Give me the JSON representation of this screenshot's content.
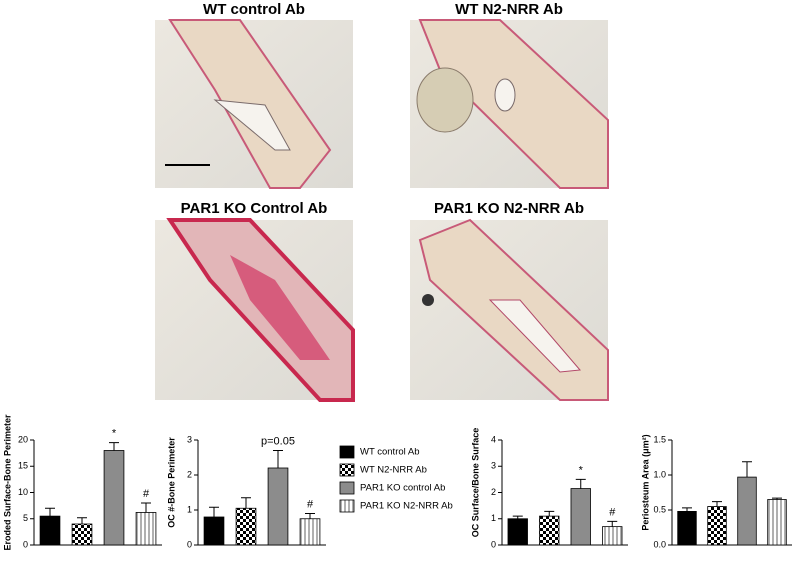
{
  "panels": [
    "WT control Ab",
    "WT N2-NRR Ab",
    "PAR1 KO Control Ab",
    "PAR1 KO N2-NRR Ab"
  ],
  "legend": {
    "entries": [
      "WT control Ab",
      "WT N2-NRR Ab",
      "PAR1 KO control Ab",
      "PAR1 KO N2-NRR Ab"
    ],
    "fills": [
      "#000000",
      "checker",
      "#8c8c8c",
      "stripes"
    ]
  },
  "chart_data": [
    {
      "type": "bar",
      "y_label": "Eroded Surface-Bone Perimeter",
      "values": [
        5.5,
        4,
        18,
        6.2
      ],
      "errors": [
        1.5,
        1.2,
        1.5,
        1.8
      ],
      "annotations": [
        null,
        null,
        "*",
        "#"
      ],
      "ylim": [
        0,
        20
      ],
      "yticks": [
        0,
        5,
        10,
        15,
        20
      ]
    },
    {
      "type": "bar",
      "y_label": "OC #-Bone Perimeter",
      "values": [
        0.8,
        1.05,
        2.2,
        0.75
      ],
      "errors": [
        0.28,
        0.3,
        0.5,
        0.15
      ],
      "annotations": [
        null,
        null,
        "p=0.05",
        "#"
      ],
      "ylim": [
        0,
        3
      ],
      "yticks": [
        0,
        1,
        2,
        3
      ]
    },
    {
      "type": "bar",
      "y_label": "OC Surface/Bone Surface",
      "values": [
        1.0,
        1.1,
        2.15,
        0.7
      ],
      "errors": [
        0.1,
        0.18,
        0.35,
        0.2
      ],
      "annotations": [
        null,
        null,
        "*",
        "#"
      ],
      "ylim": [
        0,
        4
      ],
      "yticks": [
        0,
        1,
        2,
        3,
        4
      ]
    },
    {
      "type": "bar",
      "y_label": "Periosteum Area (μm²)",
      "values": [
        0.48,
        0.55,
        0.97,
        0.65
      ],
      "errors": [
        0.05,
        0.07,
        0.22,
        0.02
      ],
      "ylim": [
        0,
        1.5
      ],
      "yticks": [
        {
          "value": 0,
          "label": "0.0"
        },
        0.5,
        {
          "value": 1,
          "label": "1.0"
        },
        1.5
      ]
    }
  ]
}
